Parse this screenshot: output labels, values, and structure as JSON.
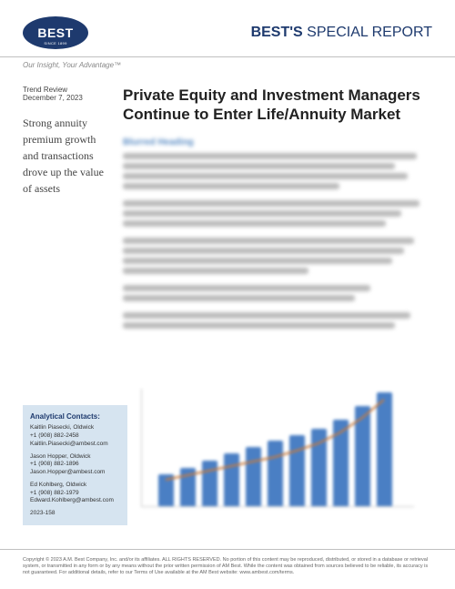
{
  "header": {
    "logo_main": "BEST",
    "logo_top": "AM",
    "logo_since": "SINCE 1899",
    "title_bold": "BEST'S",
    "title_light": "SPECIAL REPORT"
  },
  "tagline": "Our Insight, Your Advantage™",
  "sidebar": {
    "trend_label": "Trend Review",
    "trend_date": "December 7, 2023",
    "callout": "Strong annuity premium growth and transactions drove up the value of assets"
  },
  "article": {
    "title": "Private Equity and Investment Managers Continue to Enter Life/Annuity Market"
  },
  "contacts": {
    "title": "Analytical Contacts:",
    "list": [
      {
        "name": "Kaitlin Piasecki, Oldwick",
        "phone": "+1 (908) 882-2458",
        "email": "Kaitlin.Piasecki@ambest.com"
      },
      {
        "name": "Jason Hopper, Oldwick",
        "phone": "+1 (908) 882-1896",
        "email": "Jason.Hopper@ambest.com"
      },
      {
        "name": "Ed Kohlberg, Oldwick",
        "phone": "+1 (908) 882-1979",
        "email": "Edward.Kohlberg@ambest.com"
      }
    ],
    "ref": "2023-158"
  },
  "chart": {
    "type": "bar",
    "bar_color": "#4a7fc4",
    "line_color": "#c97a3a",
    "background": "#ffffff",
    "values": [
      35,
      42,
      50,
      58,
      65,
      72,
      78,
      85,
      95,
      110,
      125
    ],
    "line_values": [
      30,
      35,
      40,
      45,
      50,
      55,
      62,
      70,
      82,
      98,
      118
    ],
    "ylim": [
      0,
      130
    ],
    "y_ticks": [
      0,
      25,
      50,
      75,
      100,
      125
    ]
  },
  "footer": {
    "copyright": "Copyright © 2023 A.M. Best Company, Inc. and/or its affiliates. ALL RIGHTS RESERVED. No portion of this content may be reproduced, distributed, or stored in a database or retrieval system, or transmitted in any form or by any means without the prior written permission of AM Best. While the content was obtained from sources believed to be reliable, its accuracy is not guaranteed. For additional details, refer to our Terms of Use available at the AM Best website: www.ambest.com/terms."
  }
}
